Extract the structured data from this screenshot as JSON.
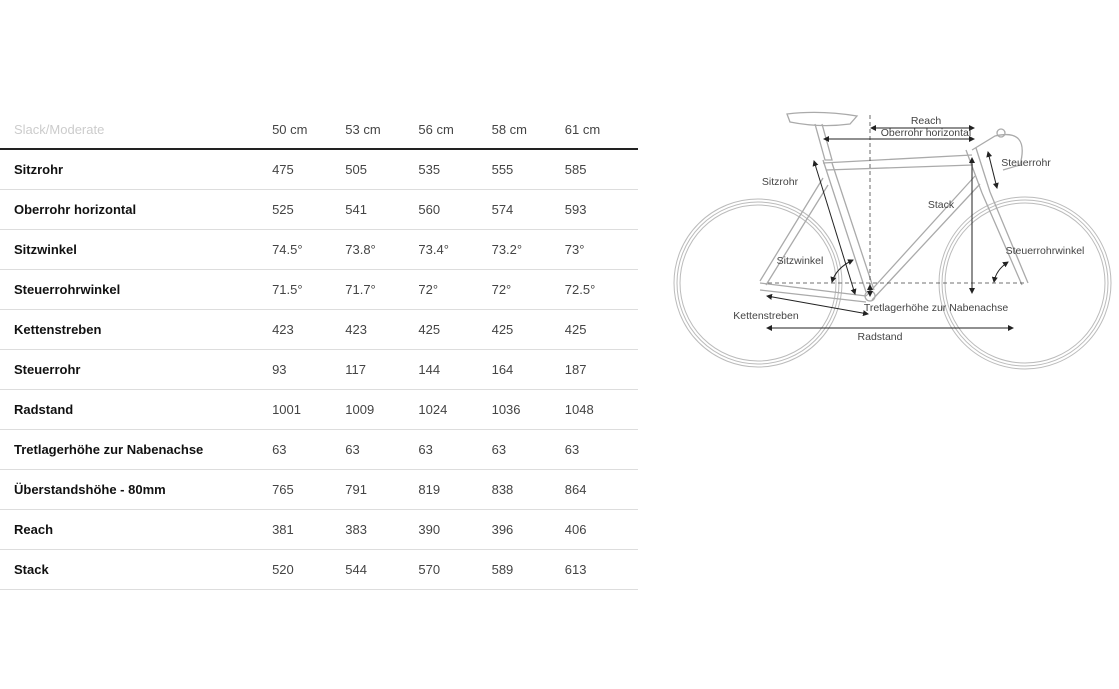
{
  "table": {
    "header_label": "Slack/Moderate",
    "sizes": [
      "50 cm",
      "53 cm",
      "56 cm",
      "58 cm",
      "61 cm"
    ],
    "rows": [
      {
        "label": "Sitzrohr",
        "values": [
          "475",
          "505",
          "535",
          "555",
          "585"
        ]
      },
      {
        "label": "Oberrohr horizontal",
        "values": [
          "525",
          "541",
          "560",
          "574",
          "593"
        ]
      },
      {
        "label": "Sitzwinkel",
        "values": [
          "74.5°",
          "73.8°",
          "73.4°",
          "73.2°",
          "73°"
        ]
      },
      {
        "label": "Steuerrohrwinkel",
        "values": [
          "71.5°",
          "71.7°",
          "72°",
          "72°",
          "72.5°"
        ]
      },
      {
        "label": "Kettenstreben",
        "values": [
          "423",
          "423",
          "425",
          "425",
          "425"
        ]
      },
      {
        "label": "Steuerrohr",
        "values": [
          "93",
          "117",
          "144",
          "164",
          "187"
        ]
      },
      {
        "label": "Radstand",
        "values": [
          "1001",
          "1009",
          "1024",
          "1036",
          "1048"
        ]
      },
      {
        "label": "Tretlagerhöhe zur Nabenachse",
        "values": [
          "63",
          "63",
          "63",
          "63",
          "63"
        ]
      },
      {
        "label": "Überstandshöhe - 80mm",
        "values": [
          "765",
          "791",
          "819",
          "838",
          "864"
        ]
      },
      {
        "label": "Reach",
        "values": [
          "381",
          "383",
          "390",
          "396",
          "406"
        ]
      },
      {
        "label": "Stack",
        "values": [
          "520",
          "544",
          "570",
          "589",
          "613"
        ]
      }
    ]
  },
  "diagram": {
    "labels": {
      "reach": "Reach",
      "oberrohr": "Oberrohr horizontal",
      "steuerrohr": "Steuerrohr",
      "sitzrohr": "Sitzrohr",
      "stack": "Stack",
      "sitzwinkel": "Sitzwinkel",
      "steuerrohrwinkel": "Steuerrohrwinkel",
      "tretlager": "Tretlagerhöhe zur Nabenachse",
      "kettenstreben": "Kettenstreben",
      "radstand": "Radstand"
    }
  }
}
